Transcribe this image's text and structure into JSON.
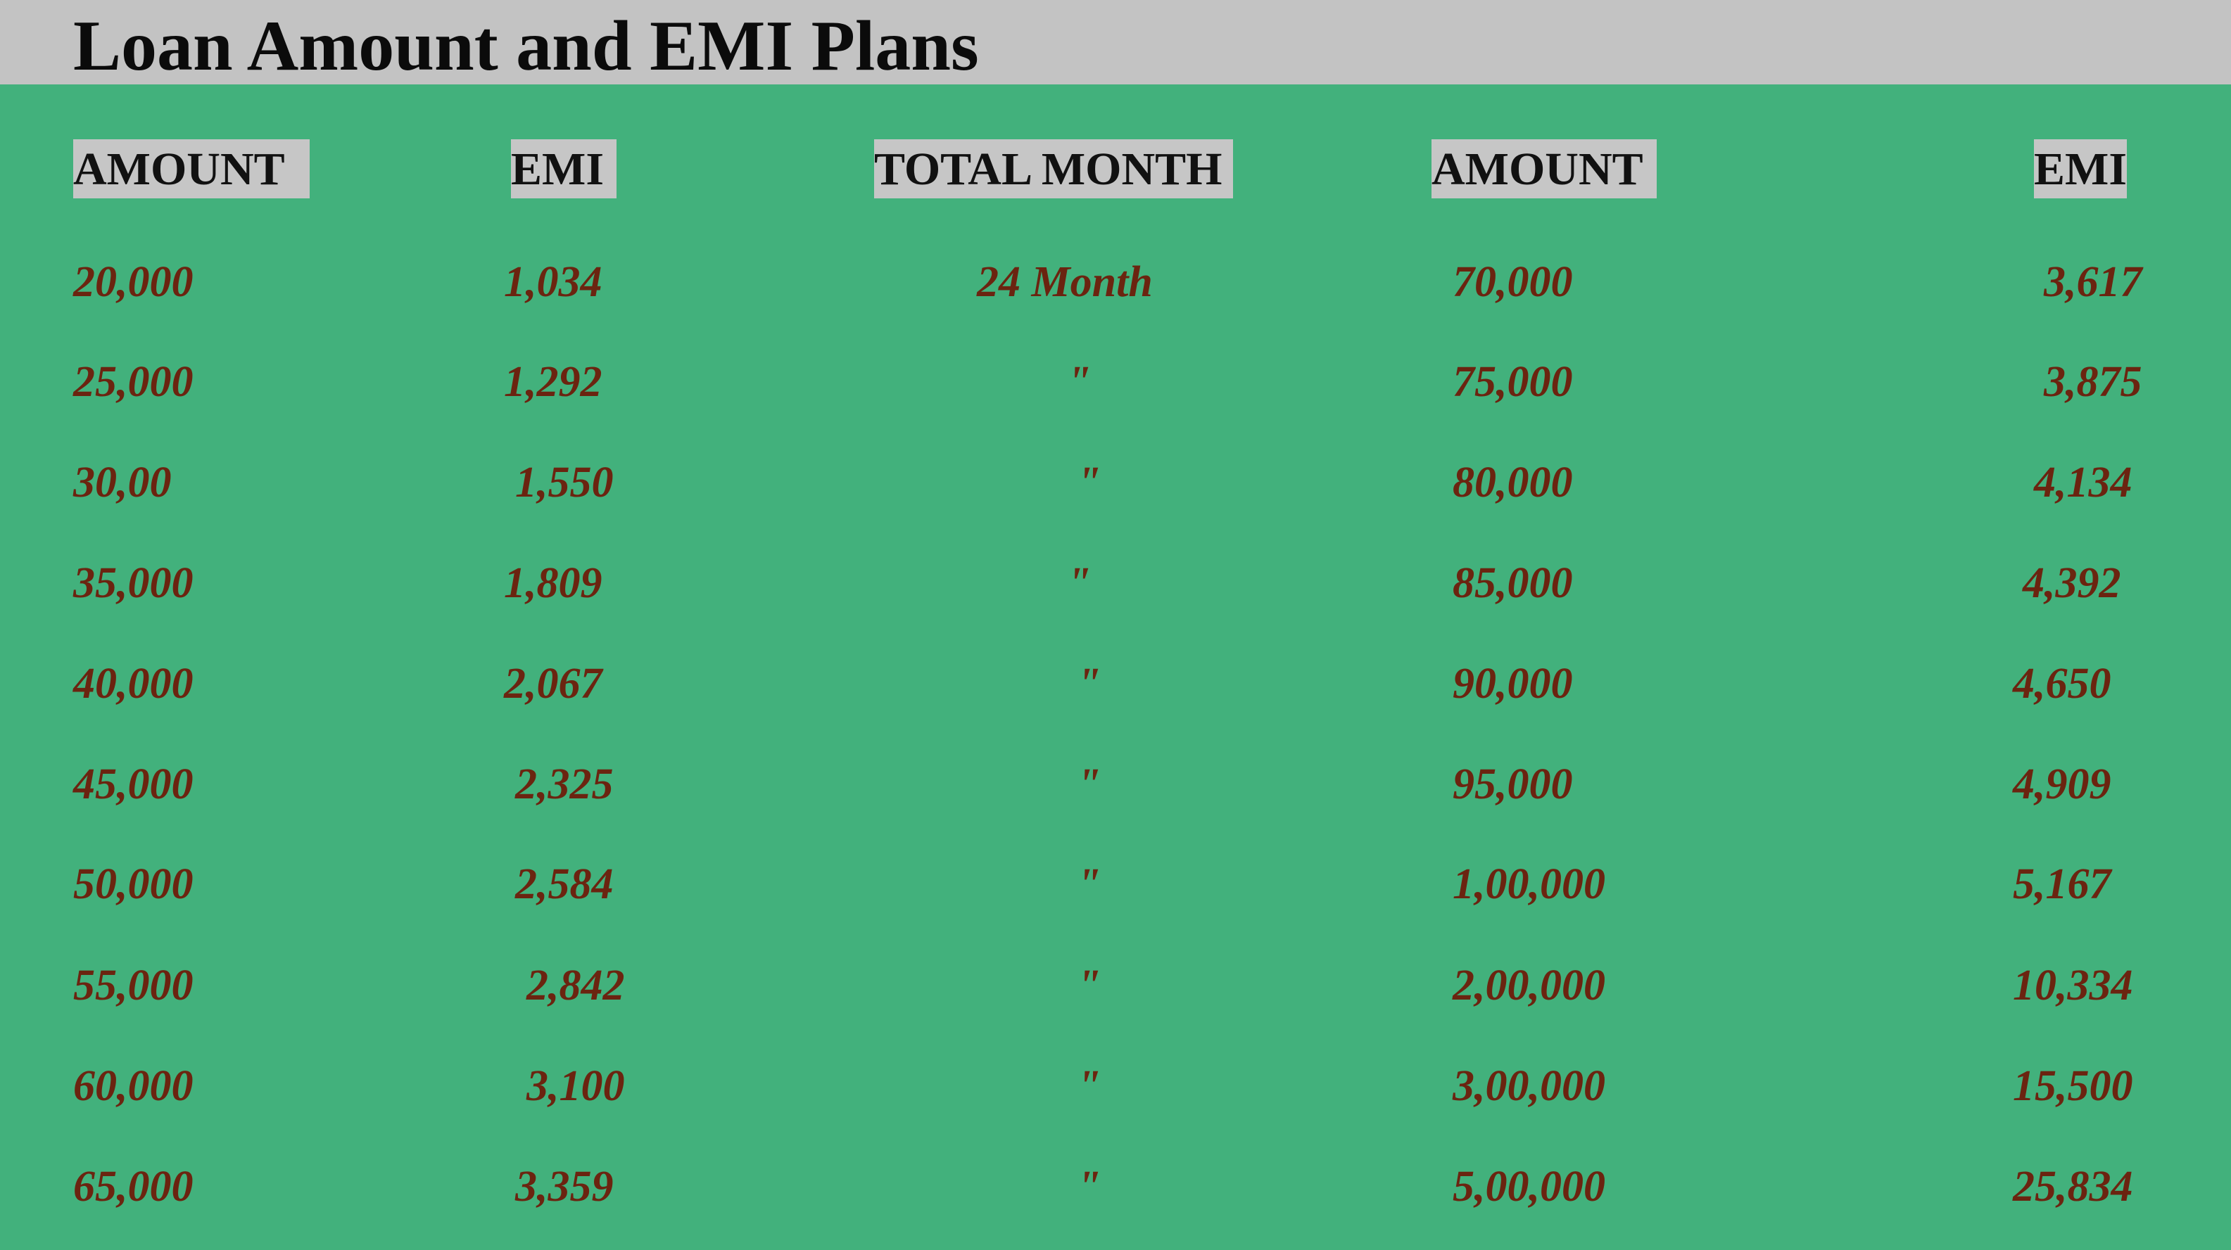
{
  "title": "Loan Amount and EMI Plans",
  "headers": [
    "AMOUNT",
    "EMI",
    "TOTAL MONTH",
    "AMOUNT",
    "EMI"
  ],
  "rows": [
    {
      "amount1": "20,000",
      "emi1": "1,034",
      "month": "24 Month",
      "amount2": "70,000",
      "emi2": "3,617"
    },
    {
      "amount1": "25,000",
      "emi1": "1,292",
      "month": "\"",
      "amount2": "75,000",
      "emi2": "3,875"
    },
    {
      "amount1": "30,00",
      "emi1": "1,550",
      "month": "\"",
      "amount2": "80,000",
      "emi2": "4,134"
    },
    {
      "amount1": "35,000",
      "emi1": "1,809",
      "month": "\"",
      "amount2": "85,000",
      "emi2": "4,392"
    },
    {
      "amount1": "40,000",
      "emi1": "2,067",
      "month": "\"",
      "amount2": "90,000",
      "emi2": "4,650"
    },
    {
      "amount1": "45,000",
      "emi1": "2,325",
      "month": "\"",
      "amount2": "95,000",
      "emi2": "4,909"
    },
    {
      "amount1": "50,000",
      "emi1": "2,584",
      "month": "\"",
      "amount2": "1,00,000",
      "emi2": "5,167"
    },
    {
      "amount1": "55,000",
      "emi1": "2,842",
      "month": "\"",
      "amount2": "2,00,000",
      "emi2": "10,334"
    },
    {
      "amount1": "60,000",
      "emi1": "3,100",
      "month": "\"",
      "amount2": "3,00,000",
      "emi2": "15,500"
    },
    {
      "amount1": "65,000",
      "emi1": "3,359",
      "month": "\"",
      "amount2": "5,00,000",
      "emi2": "25,834"
    }
  ],
  "colors": {
    "background": "#42b17c",
    "title_bar": "#c3c3c3",
    "header_bg": "#c6c6c6",
    "value_text": "#6b2410"
  }
}
